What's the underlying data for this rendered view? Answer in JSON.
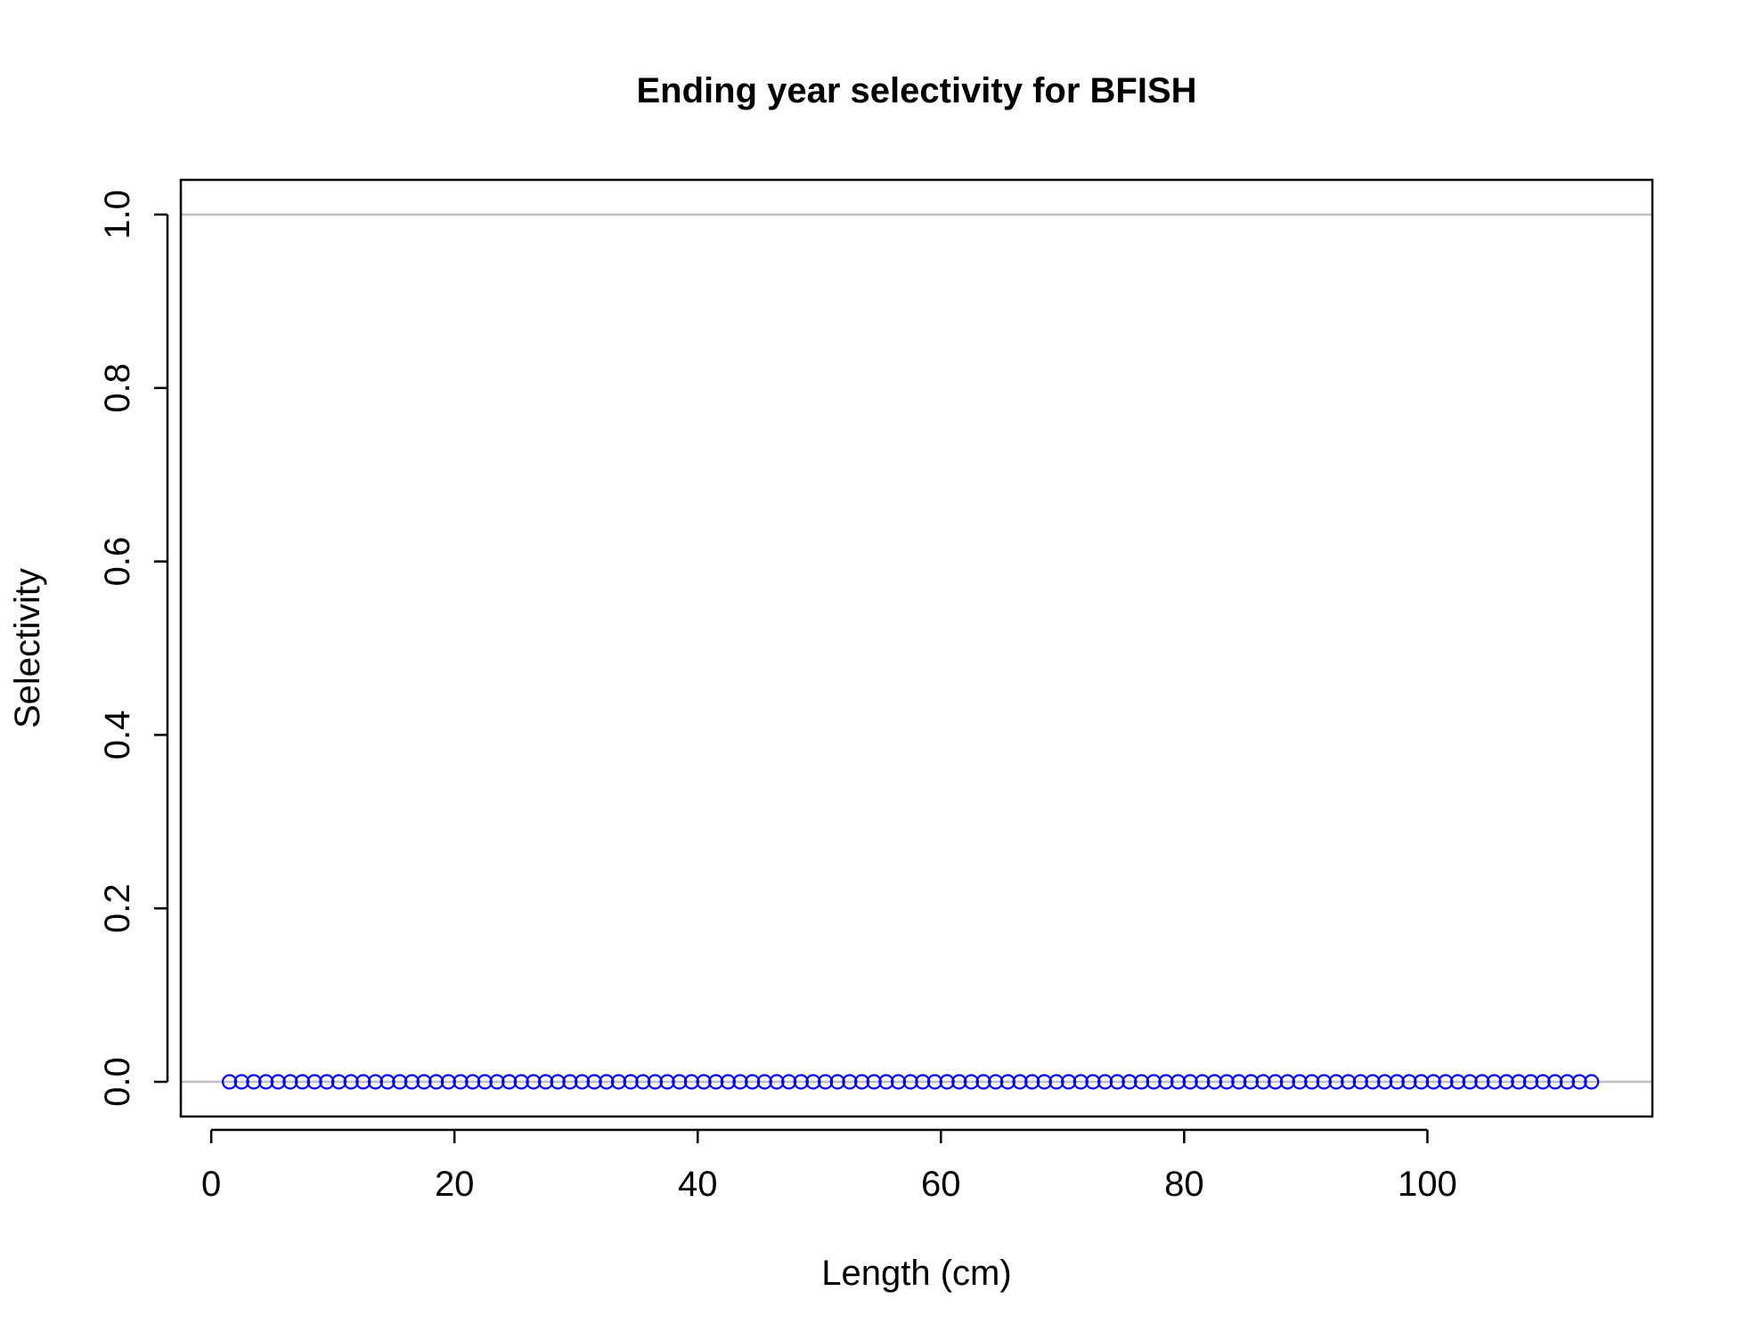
{
  "chart_data": {
    "type": "scatter",
    "title": "Ending year selectivity for BFISH",
    "xlabel": "Length (cm)",
    "ylabel": "Selectivity",
    "xlim": [
      -2.5,
      118.5
    ],
    "ylim": [
      -0.04,
      1.04
    ],
    "x_ticks": [
      "0",
      "20",
      "40",
      "60",
      "80",
      "100"
    ],
    "y_ticks": [
      "0.0",
      "0.2",
      "0.4",
      "0.6",
      "0.8",
      "1.0"
    ],
    "reference_lines_y": [
      0,
      1
    ],
    "grid": false,
    "series": [
      {
        "marker": "open-circle",
        "color": "#0000ff",
        "x_start": 1.5,
        "x_end": 113.5,
        "x_step": 1,
        "y": 0
      }
    ],
    "colors": {
      "points": "#0000ff",
      "reference_line": "#bebebe",
      "axes": "#000000"
    }
  }
}
